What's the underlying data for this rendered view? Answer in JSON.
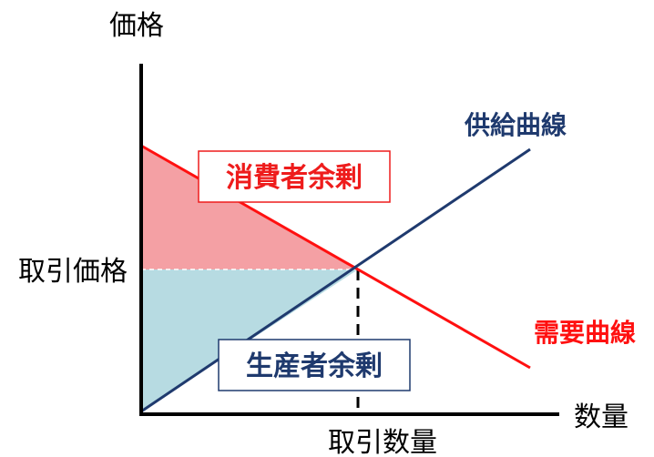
{
  "labels": {
    "y_axis": "価格",
    "x_axis": "数量",
    "equilibrium_price": "取引価格",
    "equilibrium_quantity": "取引数量",
    "supply_curve": "供給曲線",
    "demand_curve": "需要曲線",
    "consumer_surplus": "消費者余剰",
    "producer_surplus": "生産者余剰"
  },
  "colors": {
    "axis": "#000000",
    "supply": "#1f3a6e",
    "demand": "#ff1010",
    "consumer_fill": "#f4a0a4",
    "producer_fill": "#b7dbe2",
    "consumer_text": "#ee1c1c",
    "producer_text": "#1f3a6e"
  }
}
